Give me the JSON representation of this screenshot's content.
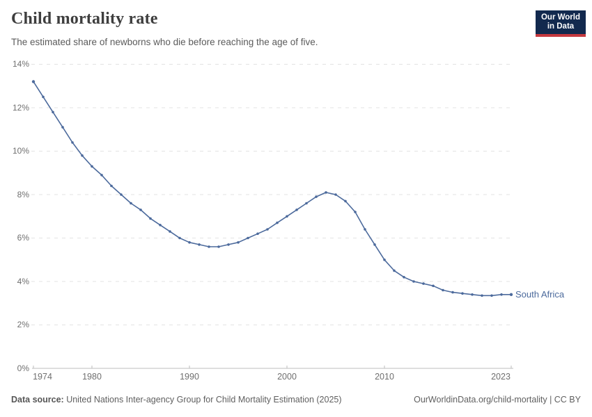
{
  "header": {
    "title": "Child mortality rate",
    "subtitle": "The estimated share of newborns who die before reaching the age of five.",
    "logo": {
      "line1": "Our World",
      "line2": "in Data"
    }
  },
  "chart_data": {
    "type": "line",
    "title": "Child mortality rate",
    "subtitle": "The estimated share of newborns who die before reaching the age of five.",
    "unit": "%",
    "xlim": [
      1974,
      2023
    ],
    "ylim": [
      0,
      14
    ],
    "grid": "horizontal-dashed",
    "legend_position": "end-of-line",
    "x_ticks": [
      1974,
      1980,
      1990,
      2000,
      2010,
      2023
    ],
    "x_tick_labels": [
      "1974",
      "1980",
      "1990",
      "2000",
      "2010",
      "2023"
    ],
    "y_ticks": [
      0,
      2,
      4,
      6,
      8,
      10,
      12,
      14
    ],
    "y_tick_labels": [
      "0%",
      "2%",
      "4%",
      "6%",
      "8%",
      "10%",
      "12%",
      "14%"
    ],
    "series": [
      {
        "name": "South Africa",
        "color": "#4C6A9C",
        "x": [
          1974,
          1975,
          1976,
          1977,
          1978,
          1979,
          1980,
          1981,
          1982,
          1983,
          1984,
          1985,
          1986,
          1987,
          1988,
          1989,
          1990,
          1991,
          1992,
          1993,
          1994,
          1995,
          1996,
          1997,
          1998,
          1999,
          2000,
          2001,
          2002,
          2003,
          2004,
          2005,
          2006,
          2007,
          2008,
          2009,
          2010,
          2011,
          2012,
          2013,
          2014,
          2015,
          2016,
          2017,
          2018,
          2019,
          2020,
          2021,
          2022,
          2023
        ],
        "values": [
          13.2,
          12.5,
          11.8,
          11.1,
          10.4,
          9.8,
          9.3,
          8.9,
          8.4,
          8.0,
          7.6,
          7.3,
          6.9,
          6.6,
          6.3,
          6.0,
          5.8,
          5.7,
          5.6,
          5.6,
          5.7,
          5.8,
          6.0,
          6.2,
          6.4,
          6.7,
          7.0,
          7.3,
          7.6,
          7.9,
          8.1,
          8.0,
          7.7,
          7.2,
          6.4,
          5.7,
          5.0,
          4.5,
          4.2,
          4.0,
          3.9,
          3.8,
          3.6,
          3.5,
          3.45,
          3.4,
          3.35,
          3.35,
          3.4,
          3.4
        ]
      }
    ]
  },
  "footer": {
    "datasource_label": "Data source:",
    "datasource_text": " United Nations Inter-agency Group for Child Mortality Estimation (2025)",
    "link_text": "OurWorldinData.org/child-mortality | CC BY"
  },
  "colors": {
    "line": "#4C6A9C",
    "gridline": "#e3e3e3",
    "axis": "#bcbcbc",
    "logo_bg": "#12294E",
    "logo_stripe": "#C5393F"
  }
}
